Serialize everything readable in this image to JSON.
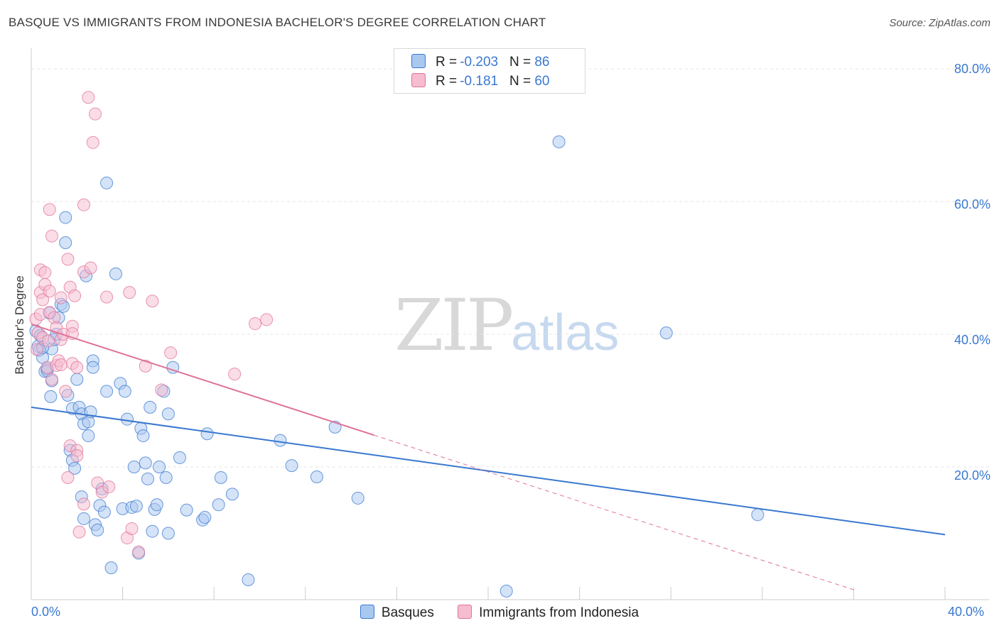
{
  "title": "BASQUE VS IMMIGRANTS FROM INDONESIA BACHELOR'S DEGREE CORRELATION CHART",
  "source": "Source: ZipAtlas.com",
  "watermark": {
    "zip": "ZIP",
    "atlas": "atlas"
  },
  "colors": {
    "blue": "#3a78d0",
    "pink": "#e07399",
    "blue_fill": "#a9c8ef",
    "pink_fill": "#f6bccf"
  },
  "legend": {
    "rows": [
      {
        "r_label": "R =",
        "r_value": "-0.203",
        "n_label": "N =",
        "n_value": "86"
      },
      {
        "r_label": "R =",
        "r_value": "-0.181",
        "n_label": "N =",
        "n_value": "60"
      }
    ]
  },
  "bottom_legend": [
    "Basques",
    "Immigrants from Indonesia"
  ],
  "chart_data": {
    "type": "scatter",
    "title": "BASQUE VS IMMIGRANTS FROM INDONESIA BACHELOR'S DEGREE CORRELATION CHART",
    "xlabel": "",
    "ylabel": "Bachelor's Degree",
    "xlim": [
      0,
      40
    ],
    "ylim": [
      0,
      80
    ],
    "x_tick_labels": [
      "0.0%",
      "40.0%"
    ],
    "y_ticks": [
      20,
      40,
      60,
      80
    ],
    "y_tick_labels": [
      "20.0%",
      "40.0%",
      "60.0%",
      "80.0%"
    ],
    "grid": true,
    "series": [
      {
        "name": "Basques",
        "color": "#3a78d0",
        "r": -0.203,
        "n": 86,
        "trend": {
          "x": [
            0,
            40
          ],
          "y": [
            29.0,
            9.8
          ],
          "dashed_extension": false
        },
        "points": [
          [
            0.2,
            40.5
          ],
          [
            0.3,
            38.2
          ],
          [
            0.35,
            37.6
          ],
          [
            0.5,
            36.5
          ],
          [
            0.4,
            39.8
          ],
          [
            0.6,
            34.4
          ],
          [
            0.7,
            34.8
          ],
          [
            0.8,
            43.2
          ],
          [
            0.9,
            33.0
          ],
          [
            0.85,
            30.6
          ],
          [
            0.9,
            37.8
          ],
          [
            1.0,
            39.2
          ],
          [
            1.1,
            40.0
          ],
          [
            1.2,
            42.5
          ],
          [
            1.3,
            44.5
          ],
          [
            1.5,
            57.6
          ],
          [
            1.5,
            53.8
          ],
          [
            1.6,
            30.8
          ],
          [
            1.7,
            22.5
          ],
          [
            1.8,
            21.0
          ],
          [
            1.8,
            28.8
          ],
          [
            1.9,
            19.8
          ],
          [
            2.0,
            33.2
          ],
          [
            2.1,
            29.0
          ],
          [
            2.2,
            15.5
          ],
          [
            2.2,
            28.0
          ],
          [
            2.3,
            26.5
          ],
          [
            2.3,
            12.2
          ],
          [
            2.4,
            48.8
          ],
          [
            2.5,
            26.8
          ],
          [
            2.5,
            24.7
          ],
          [
            2.7,
            36.0
          ],
          [
            2.7,
            35.0
          ],
          [
            2.8,
            11.3
          ],
          [
            2.9,
            10.5
          ],
          [
            3.0,
            14.2
          ],
          [
            3.1,
            16.7
          ],
          [
            3.2,
            13.2
          ],
          [
            3.3,
            62.8
          ],
          [
            3.3,
            31.4
          ],
          [
            3.5,
            4.8
          ],
          [
            3.7,
            49.1
          ],
          [
            3.9,
            32.6
          ],
          [
            4.0,
            13.7
          ],
          [
            4.1,
            31.4
          ],
          [
            4.2,
            27.2
          ],
          [
            4.4,
            13.9
          ],
          [
            4.5,
            20.0
          ],
          [
            4.6,
            14.1
          ],
          [
            4.7,
            7.0
          ],
          [
            4.8,
            25.8
          ],
          [
            4.9,
            24.7
          ],
          [
            5.0,
            20.6
          ],
          [
            5.1,
            18.2
          ],
          [
            5.2,
            29.0
          ],
          [
            5.3,
            10.3
          ],
          [
            5.4,
            13.6
          ],
          [
            5.5,
            14.3
          ],
          [
            5.6,
            20.0
          ],
          [
            5.8,
            31.4
          ],
          [
            5.9,
            18.4
          ],
          [
            6.0,
            28.0
          ],
          [
            6.0,
            10.0
          ],
          [
            6.2,
            35.0
          ],
          [
            6.5,
            21.4
          ],
          [
            6.8,
            13.5
          ],
          [
            7.5,
            12.0
          ],
          [
            7.6,
            12.4
          ],
          [
            7.7,
            25.0
          ],
          [
            8.2,
            14.3
          ],
          [
            8.3,
            18.4
          ],
          [
            8.8,
            15.9
          ],
          [
            9.5,
            3.0
          ],
          [
            10.9,
            24.0
          ],
          [
            11.4,
            20.2
          ],
          [
            12.5,
            18.5
          ],
          [
            13.3,
            26.0
          ],
          [
            14.3,
            15.3
          ],
          [
            20.8,
            1.3
          ],
          [
            23.1,
            69.0
          ],
          [
            27.8,
            40.2
          ],
          [
            31.8,
            12.8
          ],
          [
            0.5,
            38.0
          ],
          [
            1.4,
            44.2
          ],
          [
            0.7,
            34.5
          ],
          [
            2.6,
            28.3
          ]
        ]
      },
      {
        "name": "Immigrants from Indonesia",
        "color": "#e07399",
        "r": -0.181,
        "n": 60,
        "trend": {
          "x": [
            0,
            15
          ],
          "y": [
            41.5,
            24.8
          ],
          "dashed_extension": {
            "x": [
              15,
              36
            ],
            "y": [
              24.8,
              1.5
            ]
          }
        },
        "points": [
          [
            0.2,
            42.3
          ],
          [
            0.25,
            37.7
          ],
          [
            0.3,
            40.2
          ],
          [
            0.4,
            46.3
          ],
          [
            0.4,
            43.0
          ],
          [
            0.4,
            49.7
          ],
          [
            0.5,
            45.2
          ],
          [
            0.5,
            39.5
          ],
          [
            0.6,
            49.3
          ],
          [
            0.6,
            47.5
          ],
          [
            0.7,
            35.0
          ],
          [
            0.75,
            39.0
          ],
          [
            0.8,
            43.3
          ],
          [
            0.8,
            46.5
          ],
          [
            0.8,
            58.8
          ],
          [
            0.9,
            54.8
          ],
          [
            0.9,
            33.2
          ],
          [
            1.0,
            42.5
          ],
          [
            1.1,
            35.3
          ],
          [
            1.1,
            41.0
          ],
          [
            1.2,
            36.0
          ],
          [
            1.3,
            39.2
          ],
          [
            1.3,
            35.4
          ],
          [
            1.3,
            45.5
          ],
          [
            1.4,
            40.0
          ],
          [
            1.5,
            31.4
          ],
          [
            1.6,
            51.3
          ],
          [
            1.6,
            18.4
          ],
          [
            1.7,
            47.1
          ],
          [
            1.7,
            23.2
          ],
          [
            1.8,
            35.6
          ],
          [
            1.8,
            41.2
          ],
          [
            1.8,
            40.1
          ],
          [
            1.9,
            45.8
          ],
          [
            2.0,
            22.5
          ],
          [
            2.0,
            21.7
          ],
          [
            2.0,
            35.0
          ],
          [
            2.1,
            10.2
          ],
          [
            2.3,
            49.4
          ],
          [
            2.3,
            14.4
          ],
          [
            2.3,
            59.5
          ],
          [
            2.5,
            75.7
          ],
          [
            2.6,
            50.0
          ],
          [
            2.7,
            68.9
          ],
          [
            2.8,
            73.2
          ],
          [
            2.9,
            17.6
          ],
          [
            3.1,
            16.2
          ],
          [
            3.3,
            45.6
          ],
          [
            3.4,
            17.0
          ],
          [
            4.3,
            46.3
          ],
          [
            4.2,
            9.3
          ],
          [
            4.4,
            10.7
          ],
          [
            4.7,
            7.2
          ],
          [
            5.0,
            35.2
          ],
          [
            5.3,
            45.0
          ],
          [
            5.7,
            31.6
          ],
          [
            6.1,
            37.2
          ],
          [
            8.9,
            34.0
          ],
          [
            9.8,
            41.6
          ],
          [
            10.3,
            42.2
          ]
        ]
      }
    ]
  }
}
